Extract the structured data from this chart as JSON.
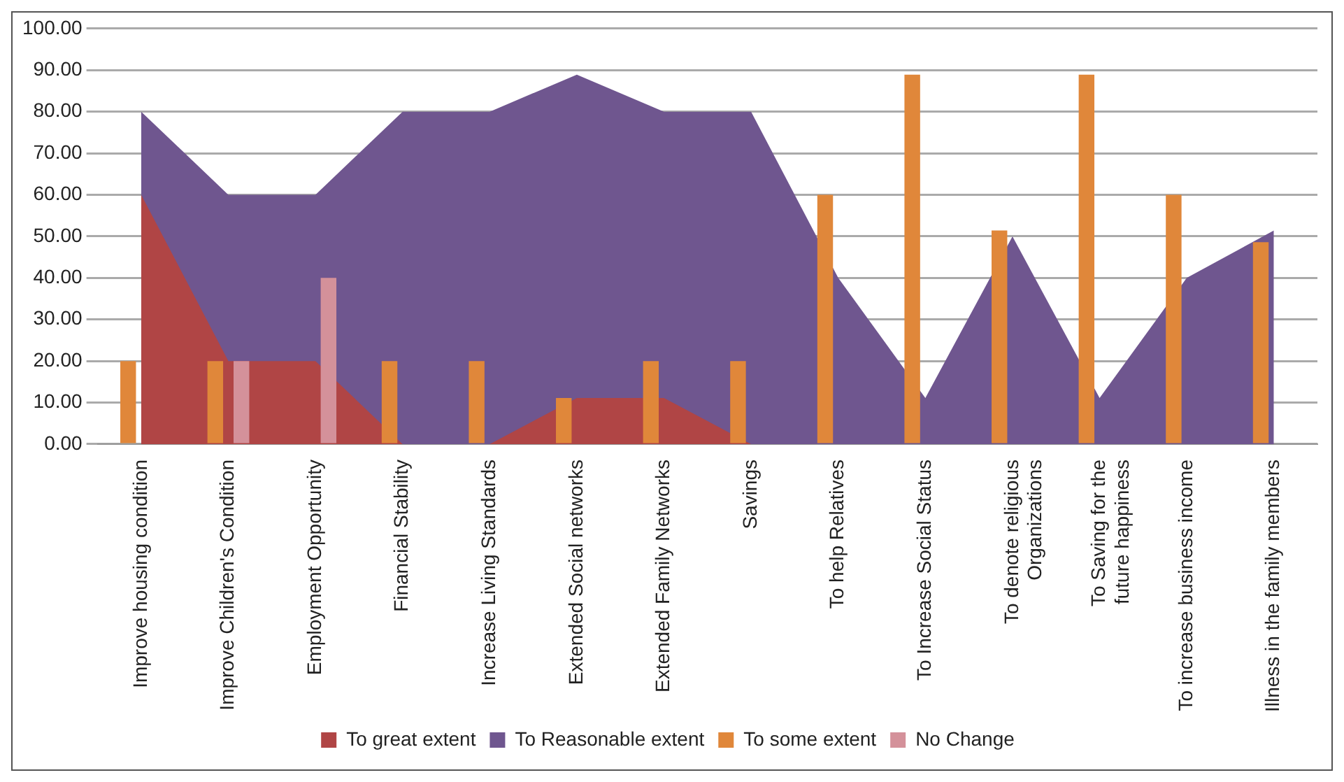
{
  "chart_data": {
    "type": "bar",
    "categories": [
      "Improve housing condition",
      "Improve Children's Condition",
      "Employment Opportunity",
      "Financial Stability",
      "Increase Living Standards",
      "Extended Social networks",
      "Extended Family Networks",
      "Savings",
      "To help Relatives",
      "To Increase Social Status",
      "To denote religious Organizations",
      "To Saving for the future happiness",
      "To increase business income",
      "Illness in the family members"
    ],
    "series": [
      {
        "name": "To great extent",
        "type": "area",
        "color": "#b04545",
        "values": [
          60,
          20,
          20,
          0,
          0,
          11.1,
          11.1,
          0,
          0,
          0,
          0,
          0,
          0,
          0
        ]
      },
      {
        "name": "To Reasonable extent",
        "type": "area",
        "color": "#6f568f",
        "values": [
          80,
          60,
          60,
          80,
          80,
          88.9,
          80,
          80,
          40,
          11.1,
          50,
          11.1,
          40,
          51.4
        ]
      },
      {
        "name": "To some extent",
        "color": "#e0873a",
        "values": [
          20,
          20,
          0,
          20,
          20,
          11.1,
          20,
          20,
          60,
          88.9,
          51.4,
          88.9,
          60,
          48.6
        ]
      },
      {
        "name": "No Change",
        "color": "#d4919a",
        "values": [
          0,
          20,
          40,
          0,
          0,
          0,
          0,
          0,
          0,
          0,
          0,
          0,
          0,
          0
        ]
      }
    ],
    "ylim": [
      0,
      100
    ],
    "yticks": [
      {
        "value": 0,
        "label": "0.00"
      },
      {
        "value": 10,
        "label": "10.00"
      },
      {
        "value": 20,
        "label": "20.00"
      },
      {
        "value": 30,
        "label": "30.00"
      },
      {
        "value": 40,
        "label": "40.00"
      },
      {
        "value": 50,
        "label": "50.00"
      },
      {
        "value": 60,
        "label": "60.00"
      },
      {
        "value": 70,
        "label": "70.00"
      },
      {
        "value": 80,
        "label": "80.00"
      },
      {
        "value": 90,
        "label": "90.00"
      },
      {
        "value": 100,
        "label": "100.00"
      }
    ],
    "grid": "y",
    "legend": "bottom"
  }
}
